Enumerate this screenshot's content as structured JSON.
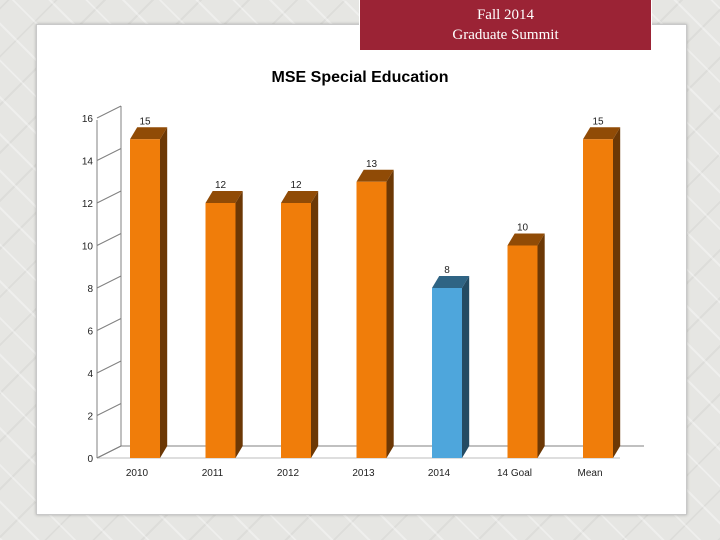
{
  "banner": {
    "line1": "Fall 2014",
    "line2": "Graduate Summit"
  },
  "colors": {
    "banner": "#9b2335",
    "bar_default": "#f07d0a",
    "bar_highlight": "#4ea6dc"
  },
  "chart_data": {
    "type": "bar",
    "title": "MSE Special Education",
    "xlabel": "",
    "ylabel": "",
    "categories": [
      "2010",
      "2011",
      "2012",
      "2013",
      "2014",
      "14 Goal",
      "Mean"
    ],
    "values": [
      15,
      12,
      12,
      13,
      8,
      10,
      15
    ],
    "highlight_index": 4,
    "ylim": [
      0,
      16
    ],
    "yticks": [
      0,
      2,
      4,
      6,
      8,
      10,
      12,
      14,
      16
    ],
    "grid": false,
    "style": "3d"
  }
}
